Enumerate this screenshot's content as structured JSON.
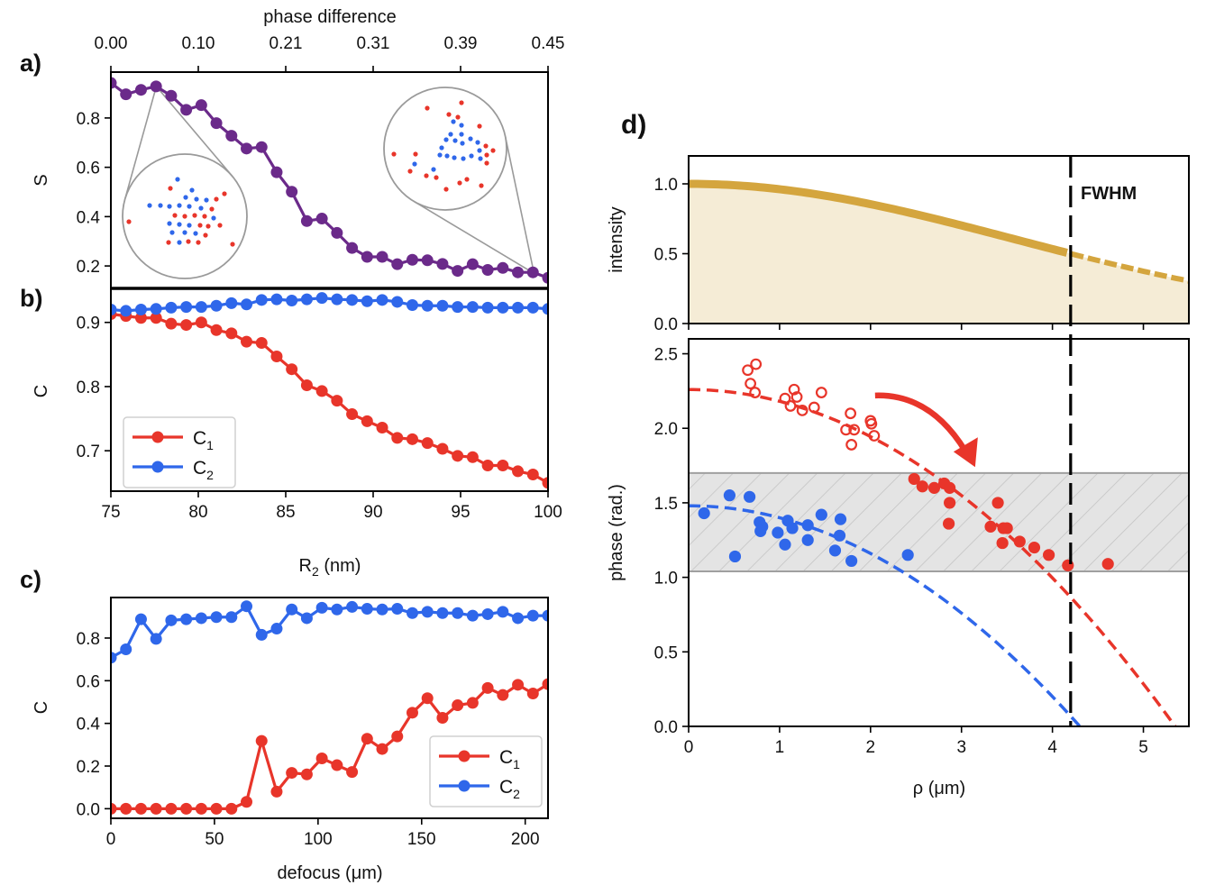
{
  "chart_data": [
    {
      "id": "a",
      "panel_label": "a)",
      "type": "line",
      "title": "",
      "xlabel": "",
      "top_xlabel": "phase difference",
      "top_tick_labels": [
        "0.00",
        "0.10",
        "0.21",
        "0.31",
        "0.39",
        "0.45"
      ],
      "top_tick_positions": [
        75,
        80,
        85,
        90,
        95,
        100
      ],
      "ylabel": "S",
      "xlim": [
        75,
        100
      ],
      "ylim": [
        0.109,
        0.986
      ],
      "yticks": [
        0.2,
        0.4,
        0.6,
        0.8
      ],
      "ytick_labels": [
        "0.2",
        "0.4",
        "0.6",
        "0.8"
      ],
      "series": [
        {
          "name": "S",
          "color": "#6b2a8a",
          "values": [
            0.942,
            0.896,
            0.914,
            0.928,
            0.89,
            0.833,
            0.852,
            0.779,
            0.728,
            0.676,
            0.682,
            0.58,
            0.501,
            0.382,
            0.392,
            0.334,
            0.273,
            0.237,
            0.237,
            0.207,
            0.225,
            0.223,
            0.208,
            0.18,
            0.207,
            0.184,
            0.192,
            0.174,
            0.174,
            0.152
          ]
        }
      ],
      "insets": [
        {
          "name": "inset-low-R2",
          "anchor_x": 77.6,
          "anchor_y": 0.928,
          "red_dots": [
            [
              -16,
              -31
            ],
            [
              44,
              -25
            ],
            [
              35,
              -19
            ],
            [
              30,
              -8
            ],
            [
              -11,
              -1
            ],
            [
              0,
              0
            ],
            [
              11,
              -1
            ],
            [
              22,
              0
            ],
            [
              17,
              10
            ],
            [
              26,
              11
            ],
            [
              39,
              10
            ],
            [
              23,
              21
            ],
            [
              -18,
              29
            ],
            [
              4,
              28
            ],
            [
              15,
              29
            ],
            [
              -62,
              6
            ],
            [
              53,
              31
            ]
          ],
          "blue_dots": [
            [
              -8,
              -41
            ],
            [
              8,
              -29
            ],
            [
              1,
              -21
            ],
            [
              13,
              -19
            ],
            [
              24,
              -18
            ],
            [
              -39,
              -12
            ],
            [
              -27,
              -12
            ],
            [
              -17,
              -11
            ],
            [
              -6,
              -12
            ],
            [
              5,
              -11
            ],
            [
              18,
              -9
            ],
            [
              32,
              2
            ],
            [
              -17,
              8
            ],
            [
              -6,
              9
            ],
            [
              5,
              10
            ],
            [
              -14,
              18
            ],
            [
              0,
              18
            ],
            [
              12,
              19
            ],
            [
              -6,
              29
            ]
          ]
        },
        {
          "name": "inset-high-R2",
          "anchor_x": 99.2,
          "anchor_y": 0.17,
          "red_dots": [
            [
              -20,
              -45
            ],
            [
              18,
              -51
            ],
            [
              4,
              -38
            ],
            [
              14,
              -35
            ],
            [
              38,
              -25
            ],
            [
              45,
              -3
            ],
            [
              53,
              2
            ],
            [
              46,
              7
            ],
            [
              46,
              16
            ],
            [
              -57,
              6
            ],
            [
              -33,
              6
            ],
            [
              -39,
              25
            ],
            [
              -21,
              30
            ],
            [
              -10,
              32
            ],
            [
              16,
              38
            ],
            [
              24,
              34
            ],
            [
              40,
              41
            ],
            [
              1,
              45
            ]
          ],
          "blue_dots": [
            [
              9,
              -30
            ],
            [
              18,
              -26
            ],
            [
              6,
              -16
            ],
            [
              18,
              -16
            ],
            [
              1,
              -10
            ],
            [
              11,
              -9
            ],
            [
              19,
              -6
            ],
            [
              28,
              -11
            ],
            [
              36,
              -7
            ],
            [
              -4,
              -1
            ],
            [
              38,
              2
            ],
            [
              -6,
              7
            ],
            [
              2,
              8
            ],
            [
              10,
              10
            ],
            [
              20,
              11
            ],
            [
              29,
              8
            ],
            [
              39,
              11
            ],
            [
              -34,
              17
            ],
            [
              -13,
              23
            ]
          ]
        }
      ]
    },
    {
      "id": "b",
      "panel_label": "b)",
      "type": "line",
      "xlabel": "R₂ (nm)",
      "xlabel_main": "R",
      "xlabel_sub": "2",
      "xlabel_tail": " (nm)",
      "ylabel": "C",
      "xlim": [
        75,
        100
      ],
      "ylim": [
        0.637,
        0.953
      ],
      "xticks": [
        75,
        80,
        85,
        90,
        95,
        100
      ],
      "xtick_labels": [
        "75",
        "80",
        "85",
        "90",
        "95",
        "100"
      ],
      "yticks": [
        0.7,
        0.8,
        0.9
      ],
      "ytick_labels": [
        "0.7",
        "0.8",
        "0.9"
      ],
      "legend": {
        "position": "lower-left",
        "entries": [
          {
            "main": "C",
            "sub": "1"
          },
          {
            "main": "C",
            "sub": "2"
          }
        ]
      },
      "series": [
        {
          "name": "C1",
          "color": "#e8352a",
          "values": [
            0.913,
            0.91,
            0.907,
            0.907,
            0.898,
            0.896,
            0.9,
            0.888,
            0.883,
            0.87,
            0.868,
            0.847,
            0.827,
            0.802,
            0.793,
            0.778,
            0.757,
            0.746,
            0.736,
            0.72,
            0.718,
            0.712,
            0.703,
            0.692,
            0.69,
            0.677,
            0.677,
            0.668,
            0.663,
            0.65
          ]
        },
        {
          "name": "C2",
          "color": "#2f67ea",
          "values": [
            0.92,
            0.918,
            0.92,
            0.921,
            0.923,
            0.924,
            0.924,
            0.926,
            0.93,
            0.928,
            0.935,
            0.936,
            0.934,
            0.936,
            0.938,
            0.936,
            0.935,
            0.933,
            0.935,
            0.932,
            0.927,
            0.926,
            0.926,
            0.924,
            0.924,
            0.923,
            0.923,
            0.923,
            0.923,
            0.921
          ]
        }
      ]
    },
    {
      "id": "c",
      "panel_label": "c)",
      "type": "line",
      "xlabel": "defocus (μm)",
      "ylabel": "C",
      "xlim": [
        0,
        211
      ],
      "ylim": [
        -0.045,
        0.99
      ],
      "xticks": [
        0,
        50,
        100,
        150,
        200
      ],
      "xtick_labels": [
        "0",
        "50",
        "100",
        "150",
        "200"
      ],
      "yticks": [
        0.0,
        0.2,
        0.4,
        0.6,
        0.8
      ],
      "ytick_labels": [
        "0.0",
        "0.2",
        "0.4",
        "0.6",
        "0.8"
      ],
      "legend": {
        "position": "lower-right",
        "entries": [
          {
            "main": "C",
            "sub": "1"
          },
          {
            "main": "C",
            "sub": "2"
          }
        ]
      },
      "series": [
        {
          "name": "C1",
          "color": "#e8352a",
          "values": [
            0,
            0,
            0,
            0,
            0,
            0,
            0,
            0,
            0,
            0.032,
            0.318,
            0.08,
            0.168,
            0.161,
            0.236,
            0.204,
            0.172,
            0.328,
            0.28,
            0.339,
            0.45,
            0.518,
            0.426,
            0.485,
            0.496,
            0.566,
            0.533,
            0.581,
            0.54,
            0.584
          ]
        },
        {
          "name": "C2",
          "color": "#2f67ea",
          "values": [
            0.708,
            0.747,
            0.888,
            0.796,
            0.883,
            0.888,
            0.893,
            0.898,
            0.898,
            0.949,
            0.815,
            0.844,
            0.934,
            0.893,
            0.942,
            0.934,
            0.946,
            0.937,
            0.934,
            0.937,
            0.917,
            0.923,
            0.917,
            0.917,
            0.905,
            0.912,
            0.923,
            0.893,
            0.905,
            0.905
          ]
        }
      ]
    },
    {
      "id": "d-intensity",
      "panel_label": "d)",
      "type": "area",
      "ylabel": "intensity",
      "xlim": [
        0,
        5.5
      ],
      "ylim": [
        0,
        1.2
      ],
      "xticks": [
        0,
        1,
        2,
        3,
        4,
        5
      ],
      "yticks": [
        0.0,
        0.5,
        1.0
      ],
      "ytick_labels": [
        "0.0",
        "0.5",
        "1.0"
      ],
      "fwhm_rho": 4.2,
      "fwhm_label": "FWHM",
      "profile": {
        "type": "gaussian",
        "amplitude": 1.0,
        "half_width_at_half_max": 4.2
      },
      "color_line": "#d4a53e",
      "color_fill": "#f5ecd6"
    },
    {
      "id": "d-phase",
      "type": "scatter",
      "xlabel": "ρ (μm)",
      "ylabel": "phase (rad.)",
      "xlim": [
        0,
        5.5
      ],
      "ylim": [
        0,
        2.6
      ],
      "xticks": [
        0,
        1,
        2,
        3,
        4,
        5
      ],
      "xtick_labels": [
        "0",
        "1",
        "2",
        "3",
        "4",
        "5"
      ],
      "yticks": [
        0.0,
        0.5,
        1.0,
        1.5,
        2.0,
        2.5
      ],
      "ytick_labels": [
        "0.0",
        "0.5",
        "1.0",
        "1.5",
        "2.0",
        "2.5"
      ],
      "shaded_band": [
        1.04,
        1.7
      ],
      "fwhm_rho": 4.2,
      "fits": [
        {
          "name": "red-fit",
          "color": "#e8352a",
          "phi0": 2.26,
          "curvature": 0.079
        },
        {
          "name": "blue-fit",
          "color": "#2f67ea",
          "phi0": 1.48,
          "curvature": 0.08
        }
      ],
      "series": [
        {
          "name": "red-open",
          "color": "#e8352a",
          "marker": "open-circle",
          "points": [
            [
              0.74,
              2.43
            ],
            [
              0.65,
              2.39
            ],
            [
              0.68,
              2.3
            ],
            [
              0.73,
              2.24
            ],
            [
              1.06,
              2.2
            ],
            [
              1.16,
              2.26
            ],
            [
              1.19,
              2.21
            ],
            [
              1.12,
              2.15
            ],
            [
              1.25,
              2.12
            ],
            [
              1.38,
              2.14
            ],
            [
              1.46,
              2.24
            ],
            [
              1.78,
              2.1
            ],
            [
              1.73,
              1.99
            ],
            [
              1.82,
              1.99
            ],
            [
              1.79,
              1.89
            ],
            [
              2.0,
              2.05
            ],
            [
              2.01,
              2.03
            ],
            [
              2.04,
              1.95
            ]
          ]
        },
        {
          "name": "red-filled",
          "color": "#e8352a",
          "marker": "filled-circle",
          "points": [
            [
              2.48,
              1.66
            ],
            [
              2.57,
              1.61
            ],
            [
              2.7,
              1.6
            ],
            [
              2.81,
              1.63
            ],
            [
              2.87,
              1.6
            ],
            [
              2.87,
              1.5
            ],
            [
              2.86,
              1.36
            ],
            [
              3.4,
              1.5
            ],
            [
              3.32,
              1.34
            ],
            [
              3.46,
              1.33
            ],
            [
              3.5,
              1.33
            ],
            [
              3.45,
              1.23
            ],
            [
              3.64,
              1.24
            ],
            [
              3.8,
              1.2
            ],
            [
              3.96,
              1.15
            ],
            [
              4.17,
              1.08
            ],
            [
              4.61,
              1.09
            ]
          ]
        },
        {
          "name": "blue-filled",
          "color": "#2f67ea",
          "marker": "filled-circle",
          "points": [
            [
              0.45,
              1.55
            ],
            [
              0.67,
              1.54
            ],
            [
              0.17,
              1.43
            ],
            [
              0.78,
              1.37
            ],
            [
              0.81,
              1.34
            ],
            [
              0.79,
              1.31
            ],
            [
              0.98,
              1.3
            ],
            [
              1.09,
              1.38
            ],
            [
              1.14,
              1.33
            ],
            [
              1.06,
              1.22
            ],
            [
              1.31,
              1.35
            ],
            [
              1.31,
              1.25
            ],
            [
              1.46,
              1.42
            ],
            [
              1.67,
              1.39
            ],
            [
              1.66,
              1.28
            ],
            [
              1.61,
              1.18
            ],
            [
              1.79,
              1.11
            ],
            [
              0.51,
              1.14
            ],
            [
              2.41,
              1.15
            ]
          ]
        }
      ],
      "arrow": {
        "from": [
          2.05,
          2.22
        ],
        "to": [
          3.15,
          1.74
        ],
        "color": "#e8352a"
      }
    }
  ]
}
